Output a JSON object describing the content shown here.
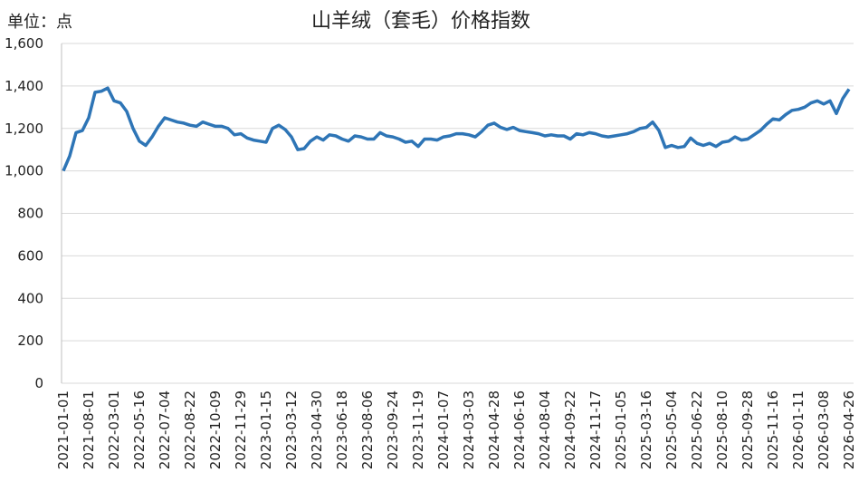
{
  "chart_data": {
    "type": "line",
    "title": "山羊绒（套毛）价格指数",
    "y_label": "单位：点",
    "color": "#2e75b6",
    "grid": true,
    "ylim": [
      0,
      1600
    ],
    "yticks": [
      0,
      200,
      400,
      600,
      800,
      {
        "value": 1000,
        "label": "1,000"
      },
      {
        "value": 1200,
        "label": "1,200"
      },
      {
        "value": 1400,
        "label": "1,400"
      },
      {
        "value": 1600,
        "label": "1,600"
      }
    ],
    "categories": [
      "2021-01-01",
      null,
      null,
      null,
      "2021-08-01",
      null,
      null,
      null,
      "2022-03-01",
      null,
      null,
      null,
      "2022-05-16",
      null,
      null,
      null,
      "2022-07-04",
      null,
      null,
      null,
      "2022-08-22",
      null,
      null,
      null,
      "2022-10-09",
      null,
      null,
      null,
      "2022-11-29",
      null,
      null,
      null,
      "2023-01-15",
      null,
      null,
      null,
      "2023-03-12",
      null,
      null,
      null,
      "2023-04-30",
      null,
      null,
      null,
      "2023-06-18",
      null,
      null,
      null,
      "2023-08-06",
      null,
      null,
      null,
      "2023-09-24",
      null,
      null,
      null,
      "2023-11-19",
      null,
      null,
      null,
      "2024-01-07",
      null,
      null,
      null,
      "2024-03-03",
      null,
      null,
      null,
      "2024-04-28",
      null,
      null,
      null,
      "2024-06-16",
      null,
      null,
      null,
      "2024-08-04",
      null,
      null,
      null,
      "2024-09-22",
      null,
      null,
      null,
      "2024-11-17",
      null,
      null,
      null,
      "2025-01-05",
      null,
      null,
      null,
      "2025-03-16",
      null,
      null,
      null,
      "2025-05-04",
      null,
      null,
      null,
      "2025-06-22",
      null,
      null,
      null,
      "2025-08-10",
      null,
      null,
      null,
      "2025-09-28",
      null,
      null,
      null,
      "2025-11-16",
      null,
      null,
      null,
      "2026-01-11",
      null,
      null,
      null,
      "2026-03-08",
      null,
      null,
      null,
      "2026-04-26"
    ],
    "values": [
      1000,
      1070,
      1180,
      1190,
      1250,
      1370,
      1375,
      1390,
      1330,
      1320,
      1280,
      1200,
      1140,
      1120,
      1160,
      1210,
      1250,
      1240,
      1230,
      1225,
      1215,
      1210,
      1230,
      1220,
      1210,
      1210,
      1200,
      1170,
      1175,
      1155,
      1145,
      1140,
      1135,
      1200,
      1215,
      1195,
      1160,
      1100,
      1105,
      1140,
      1160,
      1145,
      1170,
      1165,
      1150,
      1140,
      1165,
      1160,
      1150,
      1150,
      1180,
      1165,
      1160,
      1150,
      1135,
      1140,
      1115,
      1150,
      1150,
      1145,
      1160,
      1165,
      1175,
      1175,
      1170,
      1160,
      1185,
      1215,
      1225,
      1205,
      1195,
      1205,
      1190,
      1185,
      1180,
      1175,
      1165,
      1170,
      1165,
      1165,
      1150,
      1175,
      1170,
      1180,
      1175,
      1165,
      1160,
      1165,
      1170,
      1175,
      1185,
      1200,
      1205,
      1230,
      1190,
      1110,
      1120,
      1110,
      1115,
      1155,
      1130,
      1120,
      1130,
      1115,
      1135,
      1140,
      1160,
      1145,
      1150,
      1170,
      1190,
      1220,
      1245,
      1240,
      1265,
      1285,
      1290,
      1300,
      1320,
      1330,
      1315,
      1330,
      1270,
      1340,
      1385
    ]
  }
}
